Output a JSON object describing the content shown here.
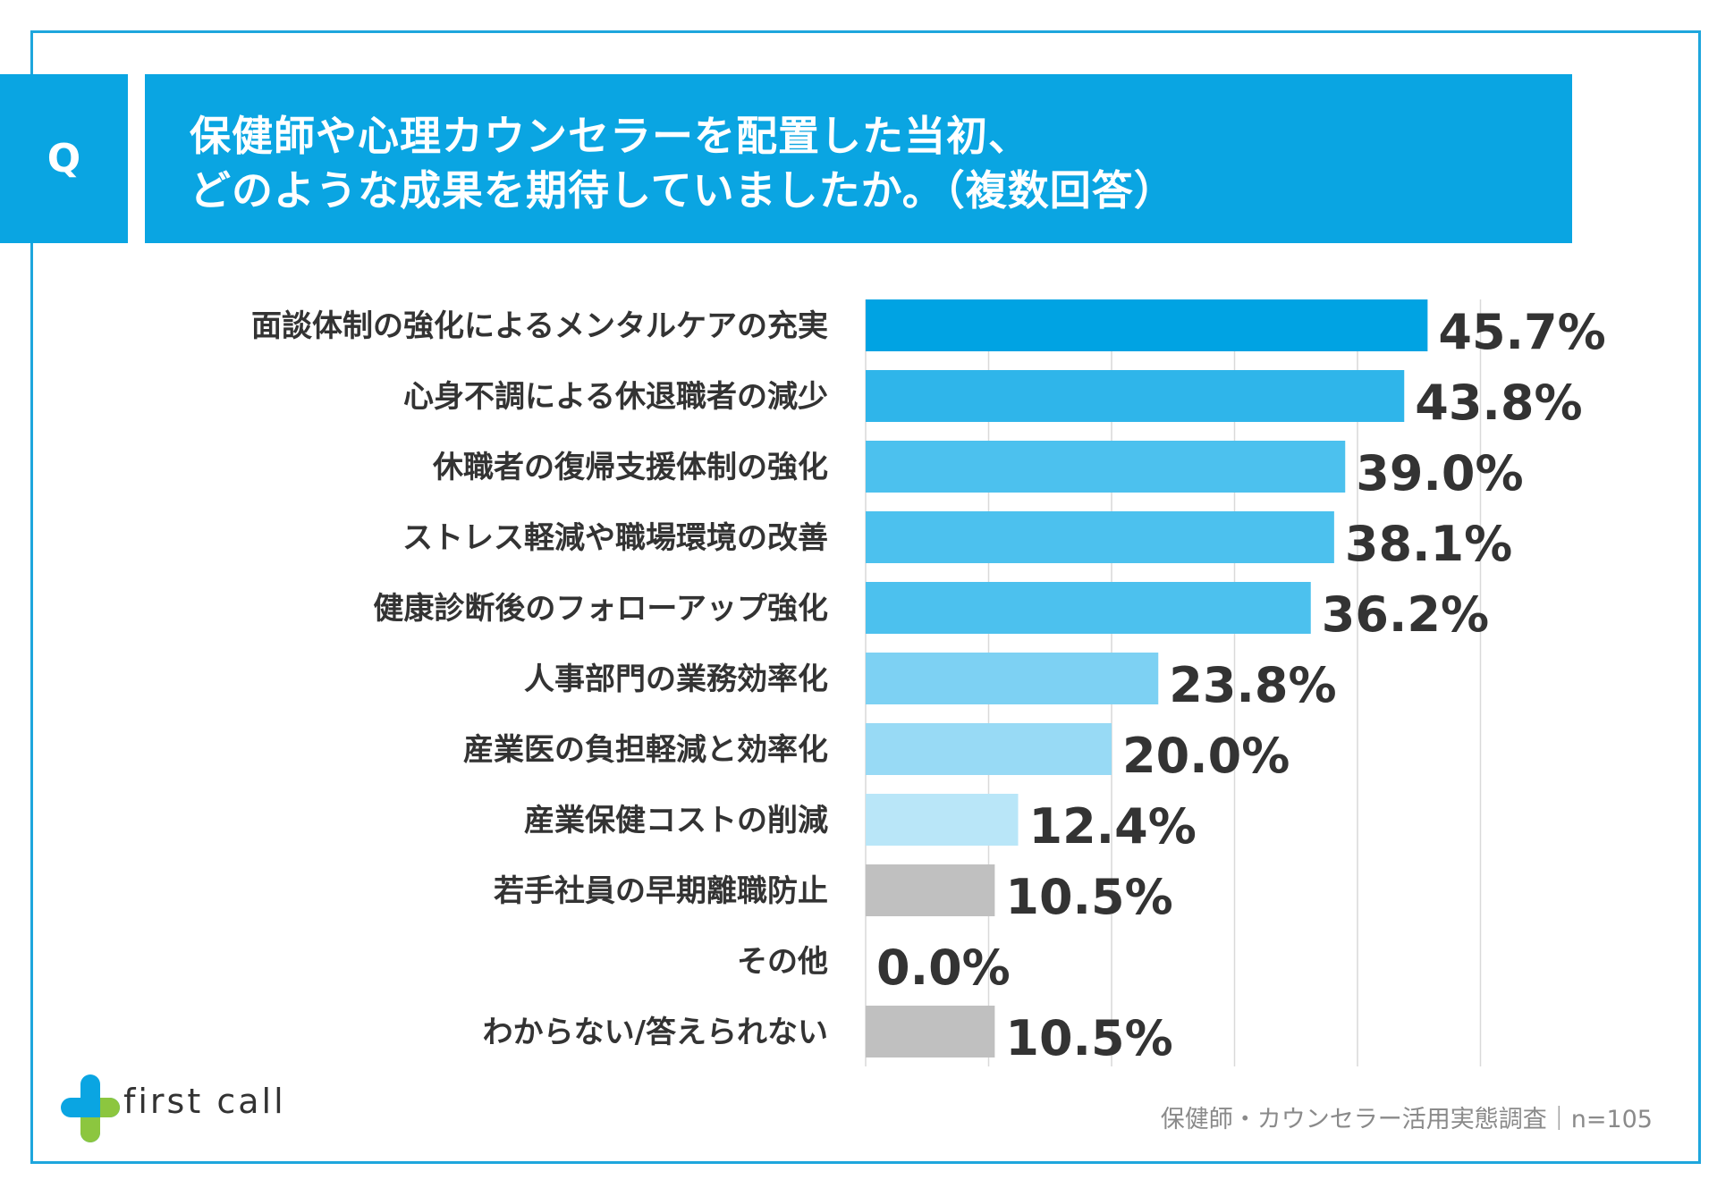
{
  "header": {
    "q_label": "Q",
    "title_line1": "保健師や心理カウンセラーを配置した当初、",
    "title_line2": "どのような成果を期待していましたか。（複数回答）"
  },
  "chart_data": {
    "type": "bar",
    "orientation": "horizontal",
    "categories": [
      "面談体制の強化によるメンタルケアの充実",
      "心身不調による休退職者の減少",
      "休職者の復帰支援体制の強化",
      "ストレス軽減や職場環境の改善",
      "健康診断後のフォローアップ強化",
      "人事部門の業務効率化",
      "産業医の負担軽減と効率化",
      "産業保健コストの削減",
      "若手社員の早期離職防止",
      "その他",
      "わからない/答えられない"
    ],
    "values": [
      45.7,
      43.8,
      39.0,
      38.1,
      36.2,
      23.8,
      20.0,
      12.4,
      10.5,
      0.0,
      10.5
    ],
    "value_labels": [
      "45.7%",
      "43.8%",
      "39.0%",
      "38.1%",
      "36.2%",
      "23.8%",
      "20.0%",
      "12.4%",
      "10.5%",
      "0.0%",
      "10.5%"
    ],
    "bar_colors": [
      "#00a3e3",
      "#2fb5ea",
      "#4cc1ee",
      "#4cc1ee",
      "#4cc1ee",
      "#7dd1f3",
      "#98daf5",
      "#b9e6f8",
      "#c0c0c0",
      "#c0c0c0",
      "#c0c0c0"
    ],
    "xlim": [
      0,
      50
    ],
    "grid": true,
    "unit": "%"
  },
  "footer": {
    "logo_text": "first call",
    "note": "保健師・カウンセラー活用実態調査｜n=105"
  },
  "colors": {
    "accent": "#0aa5e2",
    "frame": "#1ea6dd",
    "text": "#333333",
    "grid": "#d9d9d9"
  }
}
